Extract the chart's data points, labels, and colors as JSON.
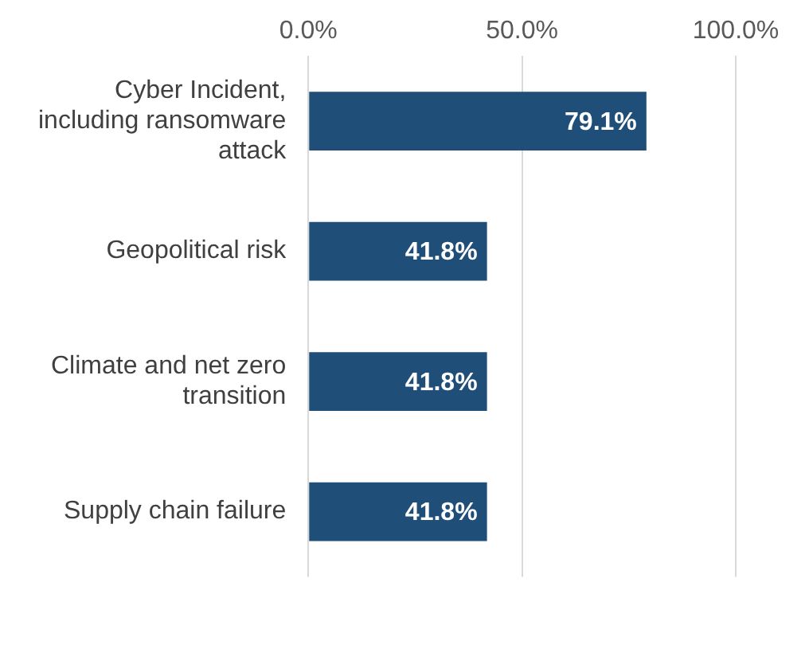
{
  "chart_data": {
    "type": "bar",
    "orientation": "horizontal",
    "categories": [
      "Cyber Incident, including ransomware attack",
      "Geopolitical risk",
      "Climate and net zero transition",
      "Supply chain failure"
    ],
    "values": [
      79.1,
      41.8,
      41.8,
      41.8
    ],
    "color": "#1f4e79",
    "xlim": [
      0,
      100
    ],
    "xticks": [
      {
        "value": 0,
        "label": "0.0%"
      },
      {
        "value": 50,
        "label": "50.0%"
      },
      {
        "value": 100,
        "label": "100.0%"
      }
    ],
    "value_labels": [
      "79.1%",
      "41.8%",
      "41.8%",
      "41.8%"
    ],
    "grid": "x",
    "legend": false
  }
}
